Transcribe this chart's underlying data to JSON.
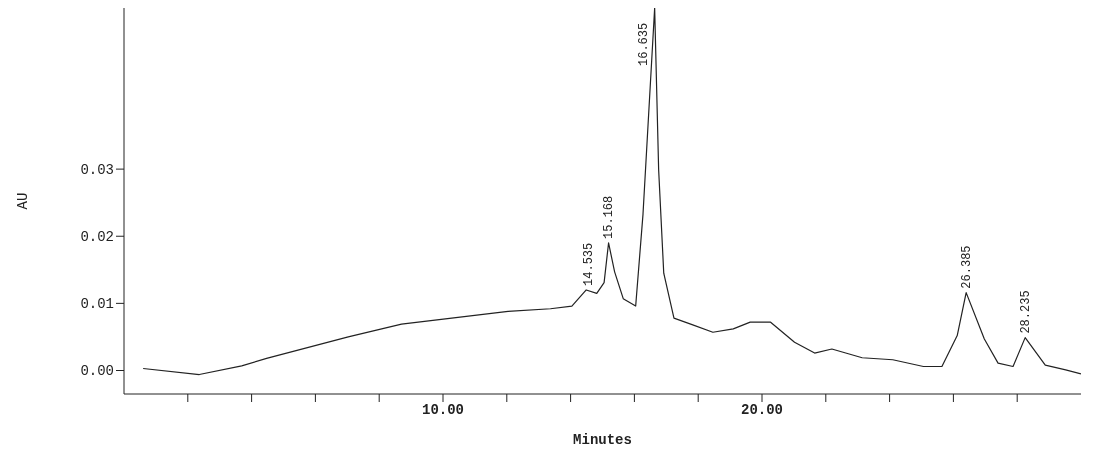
{
  "chart_data": {
    "type": "line",
    "xlabel": "Minutes",
    "ylabel": "AU",
    "xlim": [
      0,
      30
    ],
    "ylim": [
      -0.0035,
      0.054
    ],
    "xticks": [
      {
        "value": 2,
        "label": null
      },
      {
        "value": 4,
        "label": null
      },
      {
        "value": 6,
        "label": null
      },
      {
        "value": 8,
        "label": null
      },
      {
        "value": 10,
        "label": "10.00"
      },
      {
        "value": 12,
        "label": null
      },
      {
        "value": 14,
        "label": null
      },
      {
        "value": 16,
        "label": null
      },
      {
        "value": 18,
        "label": null
      },
      {
        "value": 20,
        "label": "20.00"
      },
      {
        "value": 22,
        "label": null
      },
      {
        "value": 24,
        "label": null
      },
      {
        "value": 26,
        "label": null
      },
      {
        "value": 28,
        "label": null
      }
    ],
    "yticks": [
      {
        "value": 0,
        "label": "0.00"
      },
      {
        "value": 0.01,
        "label": "0.01"
      },
      {
        "value": 0.02,
        "label": "0.02"
      },
      {
        "value": 0.03,
        "label": "0.03"
      }
    ],
    "marker": "none",
    "line_style": "solid",
    "series": [
      {
        "color": "#222222",
        "x": [
          0.6,
          2.36,
          3.69,
          4.47,
          7.03,
          8.7,
          12.04,
          13.37,
          14.04,
          14.49,
          14.82,
          15.05,
          15.19,
          15.38,
          15.65,
          16.04,
          16.27,
          16.635,
          16.76,
          16.92,
          17.24,
          17.83,
          18.46,
          19.1,
          19.63,
          20.27,
          21.02,
          21.65,
          22.19,
          23.14,
          24.1,
          25.06,
          25.64,
          26.12,
          26.4,
          26.97,
          27.4,
          27.87,
          28.25,
          28.88,
          29.52,
          30
        ],
        "values": [
          0.0003,
          -0.0006,
          0.0007,
          0.0018,
          0.005,
          0.0069,
          0.0088,
          0.0092,
          0.0096,
          0.012,
          0.0115,
          0.0131,
          0.019,
          0.0147,
          0.0107,
          0.0096,
          0.0233,
          0.054,
          0.0299,
          0.0145,
          0.0078,
          0.0068,
          0.0057,
          0.0062,
          0.0072,
          0.0072,
          0.0042,
          0.0026,
          0.0032,
          0.0019,
          0.0016,
          0.0006,
          0.0006,
          0.0052,
          0.0116,
          0.0047,
          0.0011,
          0.0006,
          0.0049,
          0.0008,
          0.0001,
          -0.0005
        ]
      }
    ],
    "annotations": [
      {
        "text": "14.535",
        "x": 14.535,
        "y": 0.012
      },
      {
        "text": "15.168",
        "x": 15.168,
        "y": 0.019
      },
      {
        "text": "16.635",
        "x": 16.635,
        "y": 0.054
      },
      {
        "text": "26.385",
        "x": 26.385,
        "y": 0.0116
      },
      {
        "text": "28.235",
        "x": 28.235,
        "y": 0.0049
      }
    ]
  }
}
